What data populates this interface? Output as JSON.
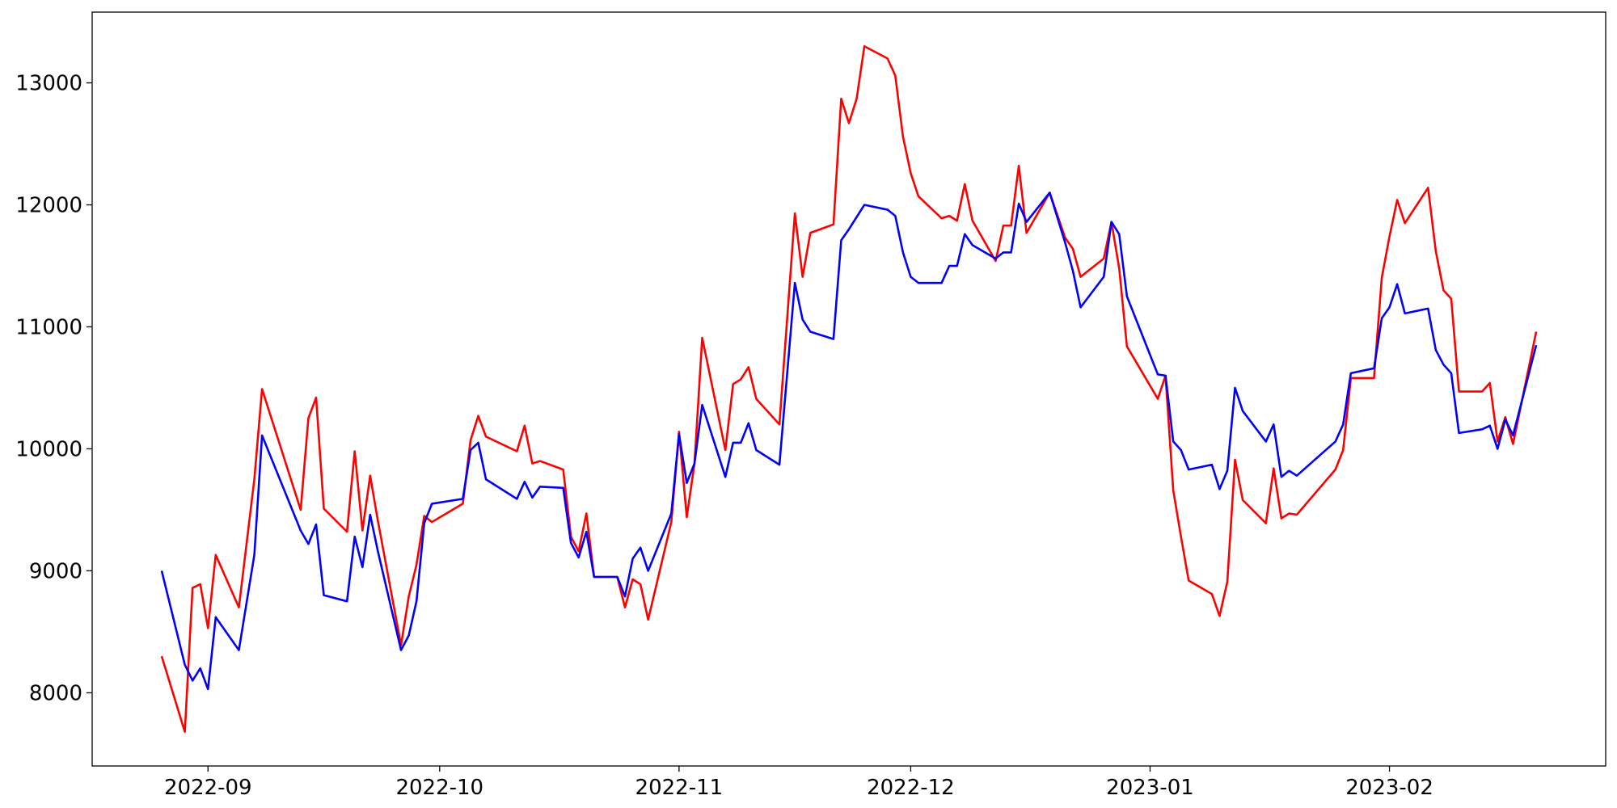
{
  "chart_data": {
    "type": "line",
    "x": [
      "2022-08-26",
      "2022-08-29",
      "2022-08-30",
      "2022-08-31",
      "2022-09-01",
      "2022-09-02",
      "2022-09-05",
      "2022-09-07",
      "2022-09-08",
      "2022-09-13",
      "2022-09-14",
      "2022-09-15",
      "2022-09-16",
      "2022-09-19",
      "2022-09-20",
      "2022-09-21",
      "2022-09-22",
      "2022-09-23",
      "2022-09-26",
      "2022-09-27",
      "2022-09-28",
      "2022-09-29",
      "2022-09-30",
      "2022-10-04",
      "2022-10-05",
      "2022-10-06",
      "2022-10-07",
      "2022-10-11",
      "2022-10-12",
      "2022-10-13",
      "2022-10-14",
      "2022-10-17",
      "2022-10-18",
      "2022-10-19",
      "2022-10-20",
      "2022-10-21",
      "2022-10-24",
      "2022-10-25",
      "2022-10-26",
      "2022-10-27",
      "2022-10-28",
      "2022-10-31",
      "2022-11-01",
      "2022-11-02",
      "2022-11-03",
      "2022-11-04",
      "2022-11-07",
      "2022-11-08",
      "2022-11-09",
      "2022-11-10",
      "2022-11-11",
      "2022-11-14",
      "2022-11-16",
      "2022-11-17",
      "2022-11-18",
      "2022-11-21",
      "2022-11-22",
      "2022-11-23",
      "2022-11-24",
      "2022-11-25",
      "2022-11-28",
      "2022-11-29",
      "2022-11-30",
      "2022-12-01",
      "2022-12-02",
      "2022-12-05",
      "2022-12-06",
      "2022-12-07",
      "2022-12-08",
      "2022-12-09",
      "2022-12-12",
      "2022-12-13",
      "2022-12-14",
      "2022-12-15",
      "2022-12-16",
      "2022-12-19",
      "2022-12-21",
      "2022-12-22",
      "2022-12-23",
      "2022-12-26",
      "2022-12-27",
      "2022-12-28",
      "2022-12-29",
      "2023-01-02",
      "2023-01-03",
      "2023-01-04",
      "2023-01-05",
      "2023-01-06",
      "2023-01-09",
      "2023-01-10",
      "2023-01-11",
      "2023-01-12",
      "2023-01-13",
      "2023-01-16",
      "2023-01-17",
      "2023-01-18",
      "2023-01-19",
      "2023-01-20",
      "2023-01-25",
      "2023-01-26",
      "2023-01-27",
      "2023-01-30",
      "2023-01-31",
      "2023-02-01",
      "2023-02-02",
      "2023-02-03",
      "2023-02-06",
      "2023-02-07",
      "2023-02-08",
      "2023-02-09",
      "2023-02-10",
      "2023-02-13",
      "2023-02-14",
      "2023-02-15",
      "2023-02-16",
      "2023-02-17",
      "2023-02-20"
    ],
    "series": [
      {
        "color": "#ff0000",
        "values": [
          8300,
          7680,
          8860,
          8890,
          8530,
          9130,
          8700,
          9750,
          10490,
          9500,
          10250,
          10420,
          9510,
          9320,
          9980,
          9330,
          9780,
          9410,
          8390,
          8790,
          9050,
          9450,
          9400,
          9550,
          10070,
          10270,
          10100,
          9980,
          10190,
          9880,
          9900,
          9830,
          9280,
          9160,
          9470,
          8950,
          8950,
          8700,
          8930,
          8890,
          8600,
          9400,
          10140,
          9440,
          9880,
          10910,
          9990,
          10530,
          10570,
          10670,
          10410,
          10200,
          11930,
          11410,
          11770,
          11840,
          12870,
          12670,
          12870,
          13300,
          13200,
          13060,
          12560,
          12260,
          12070,
          11890,
          11910,
          11870,
          12170,
          11870,
          11540,
          11830,
          11830,
          12320,
          11770,
          12100,
          11730,
          11640,
          11410,
          11560,
          11860,
          11480,
          10840,
          10410,
          10600,
          9660,
          9280,
          8920,
          8810,
          8630,
          8910,
          9910,
          9580,
          9390,
          9840,
          9430,
          9470,
          9460,
          9830,
          9990,
          10580,
          10580,
          11400,
          11740,
          12040,
          11850,
          12140,
          11620,
          11300,
          11230,
          10470,
          10470,
          10540,
          10060,
          10260,
          10040,
          10960
        ]
      },
      {
        "color": "#0000ff",
        "values": [
          9000,
          8230,
          8100,
          8200,
          8030,
          8620,
          8350,
          9130,
          10110,
          9330,
          9220,
          9380,
          8800,
          8750,
          9280,
          9030,
          9460,
          9160,
          8350,
          8470,
          8750,
          9390,
          9550,
          9590,
          9990,
          10050,
          9750,
          9590,
          9730,
          9600,
          9690,
          9680,
          9230,
          9110,
          9320,
          8950,
          8950,
          8790,
          9100,
          9190,
          9000,
          9470,
          10120,
          9720,
          9880,
          10360,
          9770,
          10050,
          10050,
          10210,
          9990,
          9870,
          11360,
          11060,
          10960,
          10900,
          11710,
          11800,
          11900,
          12000,
          11960,
          11910,
          11610,
          11410,
          11360,
          11360,
          11500,
          11500,
          11760,
          11670,
          11560,
          11610,
          11610,
          12010,
          11860,
          12100,
          11690,
          11460,
          11160,
          11410,
          11860,
          11760,
          11250,
          10610,
          10600,
          10060,
          9990,
          9830,
          9870,
          9670,
          9820,
          10500,
          10310,
          10060,
          10200,
          9770,
          9820,
          9780,
          10060,
          10200,
          10620,
          10660,
          11070,
          11160,
          11350,
          11110,
          11150,
          10810,
          10690,
          10620,
          10130,
          10160,
          10190,
          10000,
          10240,
          10110,
          10850
        ]
      }
    ],
    "xlim": [
      "2022-08-17",
      "2023-03-01"
    ],
    "xticks": [
      "2022-09",
      "2022-10",
      "2022-11",
      "2022-12",
      "2023-01",
      "2023-02"
    ],
    "ylim": [
      7400,
      13580
    ],
    "yticks": [
      8000,
      9000,
      10000,
      11000,
      12000,
      13000
    ],
    "grid": false
  }
}
